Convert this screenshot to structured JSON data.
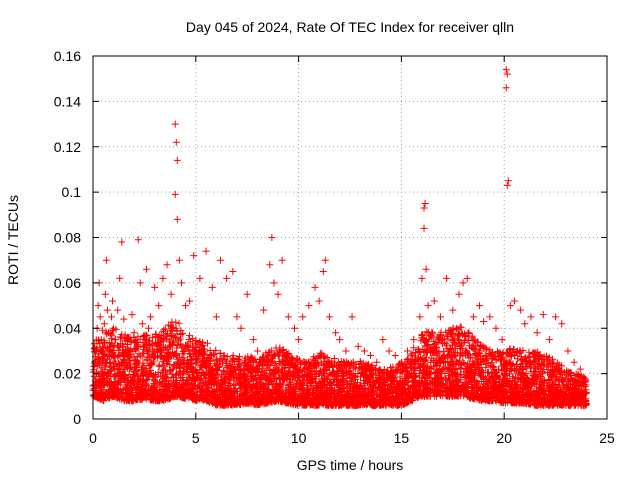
{
  "chart_data": {
    "type": "scatter",
    "title": "Day 045 of 2024, Rate Of TEC Index for receiver qlln",
    "xlabel": "GPS time / hours",
    "ylabel": "ROTI / TECUs",
    "xlim": [
      0,
      25
    ],
    "ylim": [
      0,
      0.16
    ],
    "xticks": [
      0,
      5,
      10,
      15,
      20,
      25
    ],
    "xtick_labels": [
      "0",
      "5",
      "10",
      "15",
      "20",
      "25"
    ],
    "yticks": [
      0,
      0.02,
      0.04,
      0.06,
      0.08,
      0.1,
      0.12,
      0.14,
      0.16
    ],
    "ytick_labels": [
      "0",
      "0.02",
      "0.04",
      "0.06",
      "0.08",
      "0.1",
      "0.12",
      "0.14",
      "0.16"
    ],
    "grid": true,
    "marker": "+",
    "color": "#ff0000",
    "series": [
      {
        "name": "ROTI",
        "points": [
          [
            0.05,
            0.015
          ],
          [
            0.1,
            0.025
          ],
          [
            0.15,
            0.03
          ],
          [
            0.2,
            0.04
          ],
          [
            0.25,
            0.05
          ],
          [
            0.3,
            0.06
          ],
          [
            0.35,
            0.045
          ],
          [
            0.4,
            0.035
          ],
          [
            0.45,
            0.025
          ],
          [
            0.5,
            0.03
          ],
          [
            0.55,
            0.042
          ],
          [
            0.6,
            0.055
          ],
          [
            0.65,
            0.07
          ],
          [
            0.7,
            0.048
          ],
          [
            0.75,
            0.038
          ],
          [
            0.8,
            0.028
          ],
          [
            0.85,
            0.032
          ],
          [
            0.9,
            0.045
          ],
          [
            0.95,
            0.052
          ],
          [
            1.0,
            0.04
          ],
          [
            1.1,
            0.035
          ],
          [
            1.2,
            0.048
          ],
          [
            1.3,
            0.062
          ],
          [
            1.4,
            0.078
          ],
          [
            1.5,
            0.044
          ],
          [
            1.6,
            0.03
          ],
          [
            1.7,
            0.025
          ],
          [
            1.8,
            0.036
          ],
          [
            1.9,
            0.046
          ],
          [
            2.0,
            0.038
          ],
          [
            2.2,
            0.079
          ],
          [
            2.3,
            0.06
          ],
          [
            2.4,
            0.042
          ],
          [
            2.6,
            0.066
          ],
          [
            2.7,
            0.04
          ],
          [
            2.8,
            0.045
          ],
          [
            3.0,
            0.058
          ],
          [
            3.2,
            0.05
          ],
          [
            3.4,
            0.062
          ],
          [
            3.6,
            0.068
          ],
          [
            3.8,
            0.055
          ],
          [
            4.0,
            0.13
          ],
          [
            4.05,
            0.122
          ],
          [
            4.1,
            0.114
          ],
          [
            4.0,
            0.099
          ],
          [
            4.1,
            0.088
          ],
          [
            4.2,
            0.07
          ],
          [
            4.3,
            0.06
          ],
          [
            4.5,
            0.05
          ],
          [
            4.7,
            0.052
          ],
          [
            4.9,
            0.072
          ],
          [
            5.2,
            0.062
          ],
          [
            5.5,
            0.074
          ],
          [
            5.8,
            0.058
          ],
          [
            6.0,
            0.045
          ],
          [
            6.2,
            0.07
          ],
          [
            6.5,
            0.062
          ],
          [
            6.8,
            0.065
          ],
          [
            7.0,
            0.045
          ],
          [
            7.2,
            0.04
          ],
          [
            7.5,
            0.055
          ],
          [
            7.8,
            0.035
          ],
          [
            8.0,
            0.03
          ],
          [
            8.3,
            0.048
          ],
          [
            8.6,
            0.068
          ],
          [
            8.7,
            0.08
          ],
          [
            8.8,
            0.06
          ],
          [
            9.0,
            0.055
          ],
          [
            9.2,
            0.07
          ],
          [
            9.5,
            0.045
          ],
          [
            9.8,
            0.04
          ],
          [
            10.0,
            0.035
          ],
          [
            10.2,
            0.045
          ],
          [
            10.5,
            0.05
          ],
          [
            10.8,
            0.058
          ],
          [
            11.0,
            0.052
          ],
          [
            11.2,
            0.065
          ],
          [
            11.3,
            0.07
          ],
          [
            11.5,
            0.045
          ],
          [
            11.8,
            0.038
          ],
          [
            12.0,
            0.035
          ],
          [
            12.3,
            0.03
          ],
          [
            12.6,
            0.045
          ],
          [
            12.9,
            0.032
          ],
          [
            13.2,
            0.03
          ],
          [
            13.5,
            0.028
          ],
          [
            13.8,
            0.025
          ],
          [
            14.1,
            0.035
          ],
          [
            14.4,
            0.03
          ],
          [
            14.7,
            0.028
          ],
          [
            15.0,
            0.025
          ],
          [
            15.3,
            0.03
          ],
          [
            15.6,
            0.035
          ],
          [
            15.9,
            0.045
          ],
          [
            16.0,
            0.062
          ],
          [
            16.1,
            0.093
          ],
          [
            16.15,
            0.095
          ],
          [
            16.1,
            0.084
          ],
          [
            16.2,
            0.066
          ],
          [
            16.3,
            0.05
          ],
          [
            16.6,
            0.052
          ],
          [
            16.9,
            0.045
          ],
          [
            17.2,
            0.062
          ],
          [
            17.5,
            0.048
          ],
          [
            17.8,
            0.055
          ],
          [
            18.0,
            0.06
          ],
          [
            18.2,
            0.062
          ],
          [
            18.5,
            0.045
          ],
          [
            18.8,
            0.05
          ],
          [
            19.0,
            0.043
          ],
          [
            19.3,
            0.045
          ],
          [
            19.6,
            0.04
          ],
          [
            19.9,
            0.035
          ],
          [
            20.1,
            0.154
          ],
          [
            20.15,
            0.152
          ],
          [
            20.1,
            0.146
          ],
          [
            20.2,
            0.105
          ],
          [
            20.15,
            0.103
          ],
          [
            20.3,
            0.05
          ],
          [
            20.5,
            0.052
          ],
          [
            20.8,
            0.048
          ],
          [
            21.0,
            0.042
          ],
          [
            21.3,
            0.045
          ],
          [
            21.6,
            0.038
          ],
          [
            21.9,
            0.046
          ],
          [
            22.2,
            0.035
          ],
          [
            22.5,
            0.045
          ],
          [
            22.8,
            0.042
          ],
          [
            23.1,
            0.03
          ],
          [
            23.4,
            0.025
          ],
          [
            23.7,
            0.022
          ],
          [
            23.9,
            0.018
          ]
        ]
      }
    ],
    "density_band": [
      [
        0.0,
        0.01,
        0.035
      ],
      [
        0.5,
        0.008,
        0.04
      ],
      [
        1.0,
        0.01,
        0.04
      ],
      [
        1.5,
        0.008,
        0.038
      ],
      [
        2.0,
        0.008,
        0.036
      ],
      [
        2.5,
        0.009,
        0.037
      ],
      [
        3.0,
        0.008,
        0.038
      ],
      [
        3.5,
        0.008,
        0.04
      ],
      [
        4.0,
        0.01,
        0.045
      ],
      [
        4.5,
        0.009,
        0.038
      ],
      [
        5.0,
        0.008,
        0.035
      ],
      [
        5.5,
        0.008,
        0.034
      ],
      [
        6.0,
        0.006,
        0.03
      ],
      [
        6.5,
        0.006,
        0.028
      ],
      [
        7.0,
        0.006,
        0.028
      ],
      [
        7.5,
        0.007,
        0.028
      ],
      [
        8.0,
        0.006,
        0.026
      ],
      [
        8.5,
        0.007,
        0.03
      ],
      [
        9.0,
        0.008,
        0.032
      ],
      [
        9.5,
        0.007,
        0.03
      ],
      [
        10.0,
        0.006,
        0.026
      ],
      [
        10.5,
        0.006,
        0.026
      ],
      [
        11.0,
        0.006,
        0.03
      ],
      [
        11.5,
        0.006,
        0.028
      ],
      [
        12.0,
        0.006,
        0.026
      ],
      [
        12.5,
        0.006,
        0.025
      ],
      [
        13.0,
        0.006,
        0.026
      ],
      [
        13.5,
        0.006,
        0.024
      ],
      [
        14.0,
        0.006,
        0.023
      ],
      [
        14.5,
        0.006,
        0.023
      ],
      [
        15.0,
        0.006,
        0.025
      ],
      [
        15.5,
        0.008,
        0.03
      ],
      [
        16.0,
        0.01,
        0.038
      ],
      [
        16.5,
        0.01,
        0.04
      ],
      [
        17.0,
        0.01,
        0.038
      ],
      [
        17.5,
        0.01,
        0.04
      ],
      [
        18.0,
        0.01,
        0.042
      ],
      [
        18.5,
        0.009,
        0.036
      ],
      [
        19.0,
        0.008,
        0.032
      ],
      [
        19.5,
        0.008,
        0.03
      ],
      [
        20.0,
        0.007,
        0.03
      ],
      [
        20.5,
        0.007,
        0.032
      ],
      [
        21.0,
        0.007,
        0.03
      ],
      [
        21.5,
        0.006,
        0.03
      ],
      [
        22.0,
        0.006,
        0.028
      ],
      [
        22.5,
        0.006,
        0.026
      ],
      [
        23.0,
        0.006,
        0.022
      ],
      [
        23.5,
        0.006,
        0.02
      ],
      [
        24.0,
        0.006,
        0.018
      ]
    ]
  }
}
